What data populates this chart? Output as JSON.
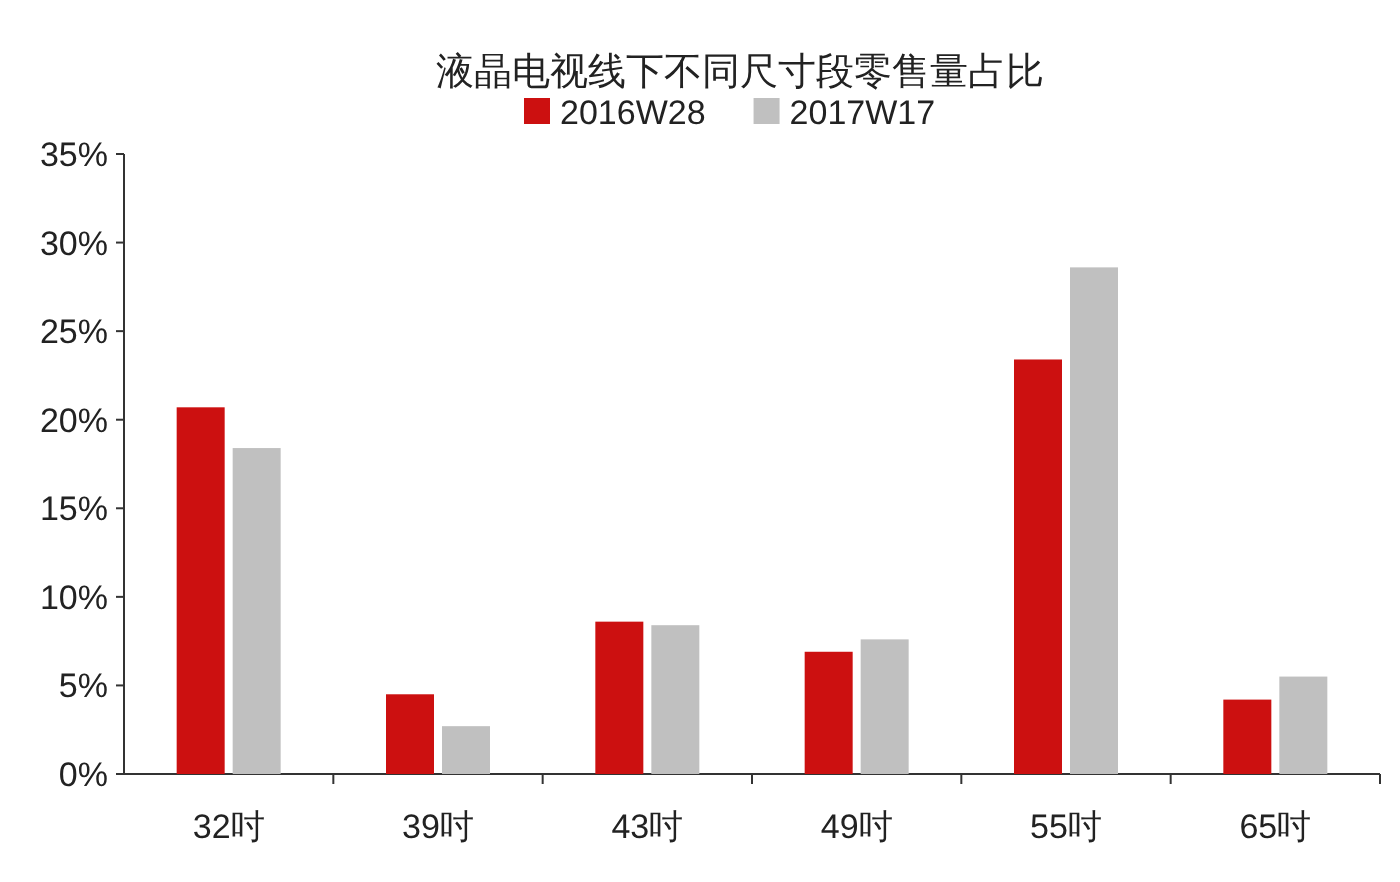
{
  "chart_data": {
    "type": "bar",
    "title": "液晶电视线下不同尺寸段零售量占比",
    "categories": [
      "32吋",
      "39吋",
      "43吋",
      "49吋",
      "55吋",
      "65吋"
    ],
    "series": [
      {
        "name": "2016W28",
        "color": "#cc1010",
        "values": [
          20.7,
          4.5,
          8.6,
          6.9,
          23.4,
          4.2
        ]
      },
      {
        "name": "2017W17",
        "color": "#c0c0c0",
        "values": [
          18.4,
          2.7,
          8.4,
          7.6,
          28.6,
          5.5
        ]
      }
    ],
    "ylim": [
      0,
      35
    ],
    "yticks": [
      {
        "value": 0,
        "label": "0%"
      },
      {
        "value": 5,
        "label": "5%"
      },
      {
        "value": 10,
        "label": "10%"
      },
      {
        "value": 15,
        "label": "15%"
      },
      {
        "value": 20,
        "label": "20%"
      },
      {
        "value": 25,
        "label": "25%"
      },
      {
        "value": 30,
        "label": "30%"
      },
      {
        "value": 35,
        "label": "35%"
      }
    ],
    "grid": false,
    "legend": "top"
  }
}
